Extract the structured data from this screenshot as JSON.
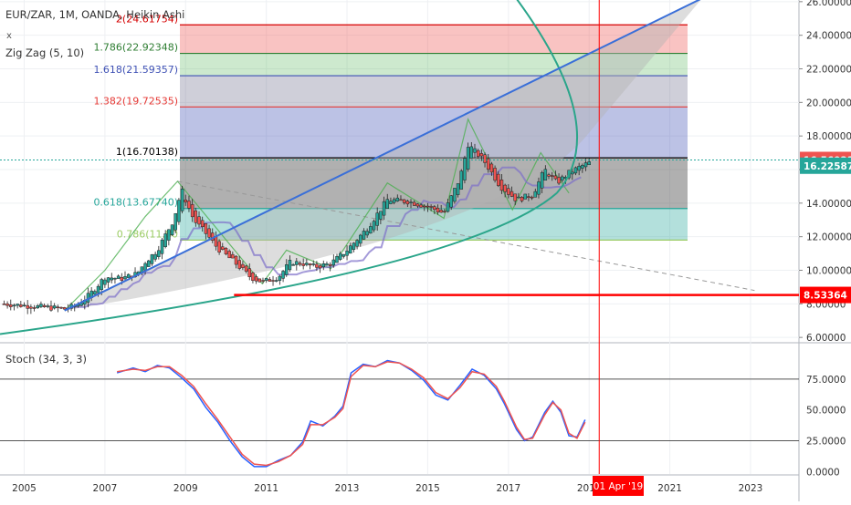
{
  "header": {
    "symbol_line": "EUR/ZAR, 1M, OANDA, Heikin Ashi",
    "close_mark": "x",
    "zigzag_label": "Zig Zag (5, 10)"
  },
  "stoch": {
    "label": "Stoch (34, 3, 3)"
  },
  "crosshair": {
    "date_label": "01 Apr '19"
  },
  "colors": {
    "up_candle": "#26a69a",
    "down_candle": "#ef5350",
    "axis_text": "#333333",
    "fib_1": "#000000",
    "red_line": "#ff0000",
    "trend_line": "#2962ff"
  },
  "chart_data": [
    {
      "type": "candlestick",
      "title": "EUR/ZAR, 1M, OANDA, Heikin Ashi",
      "xlabel": "",
      "ylabel": "",
      "x_ticks": [
        "2005",
        "2007",
        "2009",
        "2011",
        "2013",
        "2015",
        "2017",
        "2019",
        "2021",
        "2023"
      ],
      "y_ticks": [
        "6.00000",
        "8.00000",
        "10.00000",
        "12.00000",
        "14.00000",
        "16.00000",
        "18.00000",
        "20.00000",
        "22.00000",
        "24.00000",
        "26.00000"
      ],
      "ylim": [
        5.9,
        26.1
      ],
      "xlim": [
        2004.4,
        2024.2
      ],
      "grid": true,
      "price_badges": [
        {
          "label": "16.56923",
          "value": 16.57,
          "color": "#ef5350"
        },
        {
          "label": "16.22587",
          "value": 16.23,
          "color": "#26a69a"
        },
        {
          "label": "8.53364",
          "value": 8.53,
          "color": "#ff0000"
        }
      ],
      "fib_levels": [
        {
          "label": "1(16.70138)",
          "value": 16.7,
          "color": "#000000"
        },
        {
          "label": "1.382(19.72535)",
          "value": 19.73,
          "color": "#e53935"
        },
        {
          "label": "1.618(21.59357)",
          "value": 21.59,
          "color": "#3f51b5"
        },
        {
          "label": "1.786(22.92348)",
          "value": 22.92,
          "color": "#2e7d32"
        },
        {
          "label": "2(24.61754)",
          "value": 24.62,
          "color": "#d50000"
        },
        {
          "label": "0.618(13.67740)",
          "value": 13.68,
          "color": "#26a69a"
        },
        {
          "label": "0.786(11.80",
          "value": 11.8,
          "color": "#9ccc65"
        }
      ],
      "series": [
        {
          "points": [
            [
              2004.5,
              8.0
            ],
            [
              2005.0,
              7.9
            ],
            [
              2005.5,
              7.8
            ],
            [
              2006.0,
              7.7
            ],
            [
              2006.3,
              7.9
            ],
            [
              2006.6,
              8.5
            ],
            [
              2007.0,
              9.6
            ],
            [
              2007.4,
              9.5
            ],
            [
              2007.8,
              9.8
            ],
            [
              2008.0,
              10.5
            ],
            [
              2008.3,
              11.2
            ],
            [
              2008.7,
              13.0
            ],
            [
              2008.9,
              14.8
            ],
            [
              2009.2,
              13.0
            ],
            [
              2009.5,
              12.2
            ],
            [
              2009.8,
              11.3
            ],
            [
              2010.2,
              10.5
            ],
            [
              2010.6,
              9.6
            ],
            [
              2010.9,
              9.3
            ],
            [
              2011.3,
              9.6
            ],
            [
              2011.6,
              10.5
            ],
            [
              2011.9,
              10.4
            ],
            [
              2012.2,
              10.2
            ],
            [
              2012.6,
              10.4
            ],
            [
              2013.0,
              11.2
            ],
            [
              2013.5,
              12.5
            ],
            [
              2014.0,
              14.2
            ],
            [
              2014.5,
              14.1
            ],
            [
              2015.0,
              13.8
            ],
            [
              2015.4,
              13.4
            ],
            [
              2015.8,
              15.5
            ],
            [
              2016.0,
              17.5
            ],
            [
              2016.4,
              16.5
            ],
            [
              2016.8,
              15.0
            ],
            [
              2017.2,
              14.2
            ],
            [
              2017.6,
              14.5
            ],
            [
              2017.9,
              16.0
            ],
            [
              2018.2,
              15.2
            ],
            [
              2018.5,
              15.8
            ],
            [
              2018.8,
              16.2
            ],
            [
              2019.0,
              16.4
            ]
          ]
        }
      ]
    },
    {
      "type": "line",
      "title": "Stoch (34, 3, 3)",
      "xlabel": "",
      "ylabel": "",
      "y_ticks": [
        "0.0000",
        "25.0000",
        "50.0000",
        "75.0000"
      ],
      "ylim": [
        -2,
        100
      ],
      "grid": true,
      "series": [
        {
          "color": "#2962ff",
          "points": [
            [
              2007.3,
              80
            ],
            [
              2007.7,
              84
            ],
            [
              2008.0,
              81
            ],
            [
              2008.3,
              86
            ],
            [
              2008.6,
              84
            ],
            [
              2008.9,
              76
            ],
            [
              2009.2,
              67
            ],
            [
              2009.5,
              52
            ],
            [
              2009.8,
              40
            ],
            [
              2010.1,
              25
            ],
            [
              2010.4,
              12
            ],
            [
              2010.7,
              4
            ],
            [
              2011.0,
              4
            ],
            [
              2011.3,
              9
            ],
            [
              2011.6,
              13
            ],
            [
              2011.9,
              24
            ],
            [
              2012.1,
              41
            ],
            [
              2012.4,
              37
            ],
            [
              2012.7,
              45
            ],
            [
              2012.9,
              53
            ],
            [
              2013.1,
              80
            ],
            [
              2013.4,
              87
            ],
            [
              2013.7,
              85
            ],
            [
              2014.0,
              90
            ],
            [
              2014.3,
              88
            ],
            [
              2014.6,
              82
            ],
            [
              2014.9,
              74
            ],
            [
              2015.2,
              62
            ],
            [
              2015.5,
              58
            ],
            [
              2015.8,
              70
            ],
            [
              2016.1,
              83
            ],
            [
              2016.4,
              78
            ],
            [
              2016.7,
              67
            ],
            [
              2016.9,
              55
            ],
            [
              2017.2,
              34
            ],
            [
              2017.4,
              25
            ],
            [
              2017.6,
              28
            ],
            [
              2017.9,
              48
            ],
            [
              2018.1,
              57
            ],
            [
              2018.3,
              48
            ],
            [
              2018.5,
              29
            ],
            [
              2018.7,
              28
            ],
            [
              2018.9,
              42
            ]
          ]
        },
        {
          "color": "#ef5350",
          "points": [
            [
              2007.3,
              81
            ],
            [
              2007.7,
              83
            ],
            [
              2008.0,
              82
            ],
            [
              2008.3,
              85
            ],
            [
              2008.6,
              85
            ],
            [
              2008.9,
              78
            ],
            [
              2009.2,
              69
            ],
            [
              2009.5,
              55
            ],
            [
              2009.8,
              42
            ],
            [
              2010.1,
              28
            ],
            [
              2010.4,
              14
            ],
            [
              2010.7,
              6
            ],
            [
              2011.0,
              5
            ],
            [
              2011.3,
              8
            ],
            [
              2011.6,
              13
            ],
            [
              2011.9,
              22
            ],
            [
              2012.1,
              38
            ],
            [
              2012.4,
              38
            ],
            [
              2012.7,
              44
            ],
            [
              2012.9,
              51
            ],
            [
              2013.1,
              77
            ],
            [
              2013.4,
              86
            ],
            [
              2013.7,
              85
            ],
            [
              2014.0,
              89
            ],
            [
              2014.3,
              88
            ],
            [
              2014.6,
              83
            ],
            [
              2014.9,
              76
            ],
            [
              2015.2,
              64
            ],
            [
              2015.5,
              59
            ],
            [
              2015.8,
              68
            ],
            [
              2016.1,
              81
            ],
            [
              2016.4,
              79
            ],
            [
              2016.7,
              69
            ],
            [
              2016.9,
              57
            ],
            [
              2017.2,
              36
            ],
            [
              2017.4,
              26
            ],
            [
              2017.6,
              27
            ],
            [
              2017.9,
              46
            ],
            [
              2018.1,
              56
            ],
            [
              2018.3,
              50
            ],
            [
              2018.5,
              31
            ],
            [
              2018.7,
              27
            ],
            [
              2018.9,
              40
            ]
          ]
        }
      ]
    }
  ]
}
